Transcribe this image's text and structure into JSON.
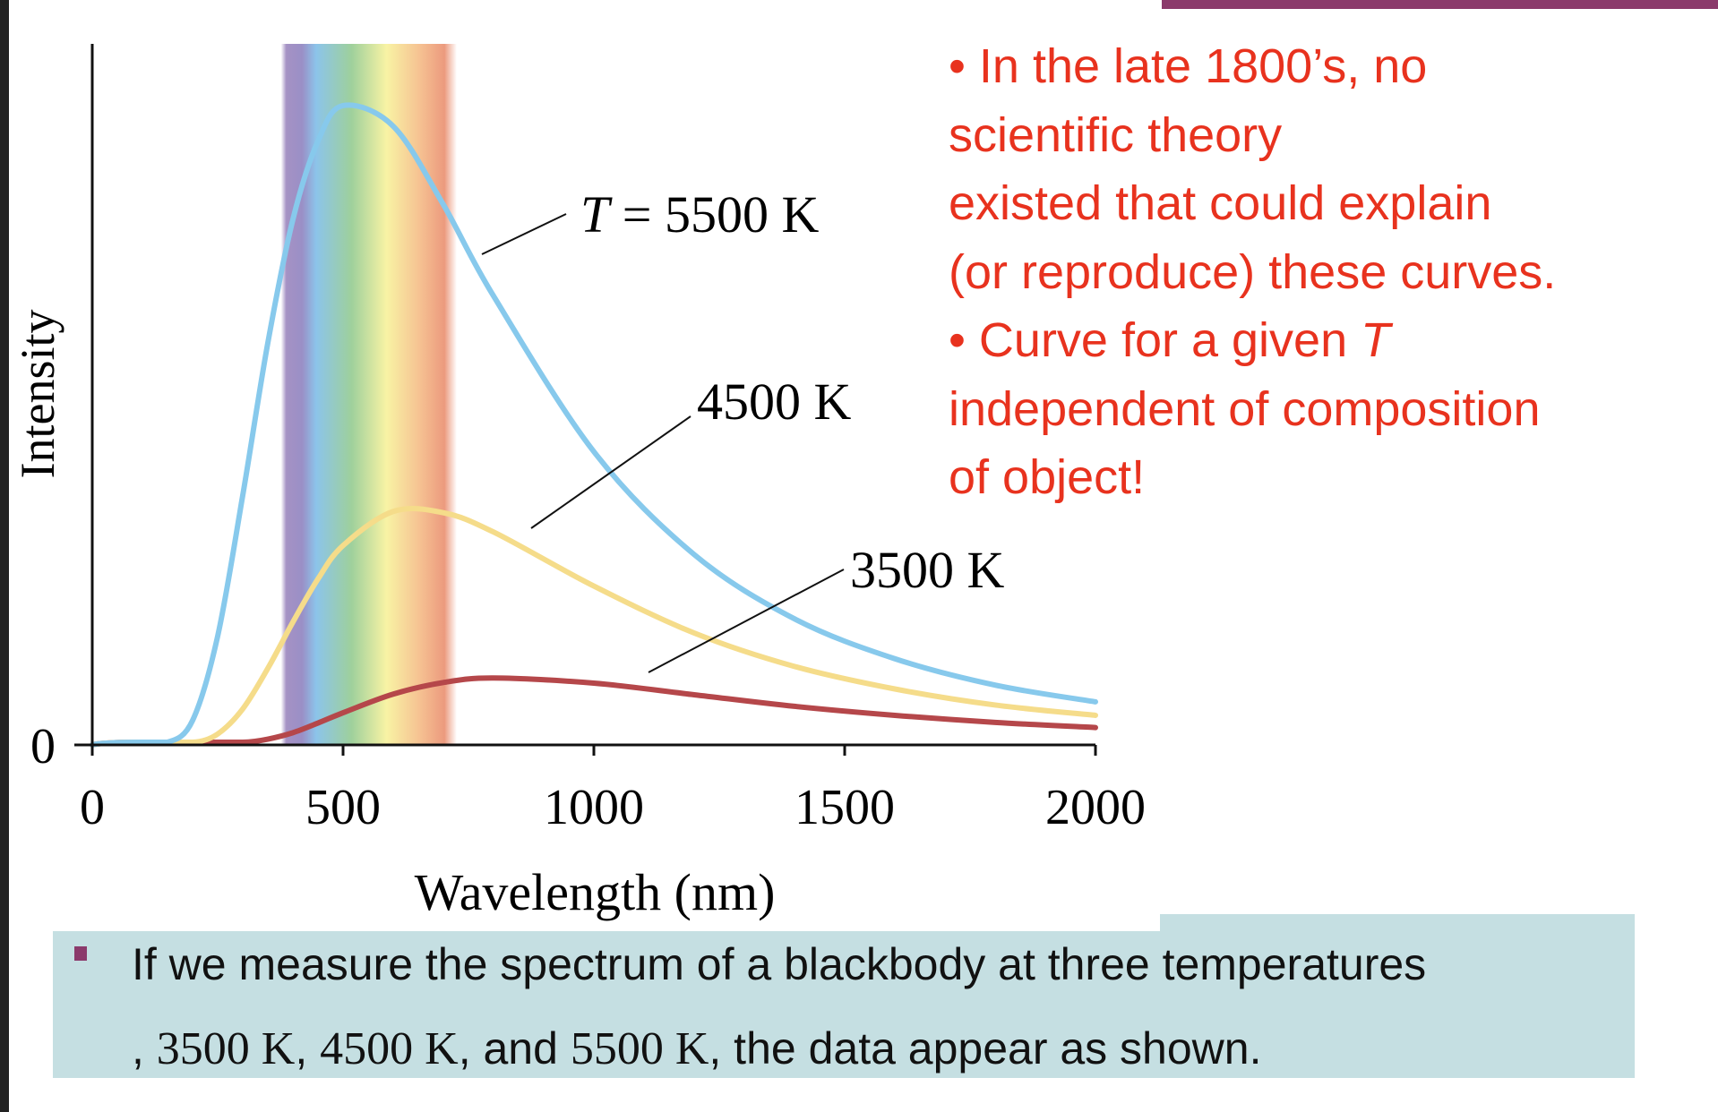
{
  "chart_data": {
    "type": "line",
    "xlabel": "Wavelength (nm)",
    "ylabel": "Intensity",
    "xlim": [
      0,
      2000
    ],
    "ylim": [
      0,
      1.09
    ],
    "xticks": [
      0,
      500,
      1000,
      1500,
      2000
    ],
    "xtick_labels": [
      "0",
      "500",
      "1000",
      "1500",
      "2000"
    ],
    "ytick_labels": [
      "0"
    ],
    "grid": false,
    "visible_band_nm": [
      387,
      716
    ],
    "series": [
      {
        "name": "T = 5500 K",
        "label_italic": "T",
        "label_rest": " = 5500 K",
        "color": "#87c9ec",
        "x": [
          0,
          100,
          150,
          200,
          250,
          300,
          350,
          400,
          450,
          500,
          600,
          700,
          800,
          1000,
          1200,
          1400,
          1600,
          1800,
          2000
        ],
        "y": [
          0,
          0,
          0.002,
          0.038,
          0.169,
          0.388,
          0.625,
          0.817,
          0.939,
          0.994,
          0.962,
          0.84,
          0.698,
          0.456,
          0.296,
          0.196,
          0.134,
          0.093,
          0.067
        ]
      },
      {
        "name": "4500 K",
        "color": "#f5dc8a",
        "x": [
          0,
          100,
          150,
          200,
          250,
          300,
          350,
          400,
          450,
          500,
          600,
          700,
          800,
          1000,
          1200,
          1400,
          1600,
          1800,
          2000
        ],
        "y": [
          0,
          0,
          0,
          0.002,
          0.017,
          0.056,
          0.119,
          0.191,
          0.258,
          0.31,
          0.363,
          0.361,
          0.331,
          0.247,
          0.174,
          0.122,
          0.087,
          0.062,
          0.046
        ]
      },
      {
        "name": "3500 K",
        "color": "#b5474a",
        "x": [
          0,
          100,
          150,
          200,
          250,
          300,
          350,
          400,
          450,
          500,
          600,
          700,
          800,
          1000,
          1200,
          1400,
          1600,
          1800,
          2000
        ],
        "y": [
          0,
          0,
          0,
          0,
          0.0005,
          0.003,
          0.009,
          0.019,
          0.034,
          0.05,
          0.079,
          0.097,
          0.104,
          0.096,
          0.078,
          0.06,
          0.046,
          0.035,
          0.027
        ]
      }
    ]
  },
  "notes": {
    "line1": "•   In the late 1800’s, no",
    "line2": " scientific theory",
    "line3": "existed that could explain",
    "line4": "(or reproduce) these curves.",
    "line5_pre": "•   Curve for a given ",
    "line5_italic": "T",
    "line6": "independent of composition",
    "line7": "of object!"
  },
  "caption": {
    "line1": "If we measure the spectrum of a blackbody at three temperatures",
    "line2_a": ", ",
    "line2_t1": "3500 K",
    "line2_b": ", ",
    "line2_t2": "4500 K",
    "line2_c": ", and ",
    "line2_t3": "5500 K",
    "line2_d": ", the data appear as shown."
  },
  "colors": {
    "notes": "#e8321e",
    "accent": "#8b3a6b",
    "caption_bg": "#c5dfe2"
  }
}
